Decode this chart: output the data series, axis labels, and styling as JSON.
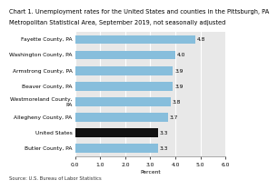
{
  "title_line1": "Chart 1. Unemployment rates for the United States and counties in the Pittsburgh, PA",
  "title_line2": "Metropolitan Statistical Area, September 2019, not seasonally adjusted",
  "categories": [
    "Fayette County, PA",
    "Washington County, PA",
    "Armstrong County, PA",
    "Beaver County, PA",
    "Westmoreland County,\nPA",
    "Allegheny County, PA",
    "United States",
    "Butler County, PA"
  ],
  "values": [
    4.8,
    4.0,
    3.9,
    3.9,
    3.8,
    3.7,
    3.3,
    3.3
  ],
  "bar_colors": [
    "#87BEDC",
    "#87BEDC",
    "#87BEDC",
    "#87BEDC",
    "#87BEDC",
    "#87BEDC",
    "#111111",
    "#87BEDC"
  ],
  "xlim": [
    0,
    6.0
  ],
  "xticks": [
    0.0,
    1.0,
    2.0,
    3.0,
    4.0,
    5.0,
    6.0
  ],
  "xtick_labels": [
    "0.0",
    "1.0",
    "2.0",
    "3.0",
    "4.0",
    "5.0",
    "6.0"
  ],
  "xlabel": "Percent",
  "source": "Source: U.S. Bureau of Labor Statistics",
  "bg_color": "#E8E8E8",
  "title_fontsize": 4.8,
  "label_fontsize": 4.3,
  "tick_fontsize": 4.3,
  "value_fontsize": 4.3,
  "source_fontsize": 3.8
}
